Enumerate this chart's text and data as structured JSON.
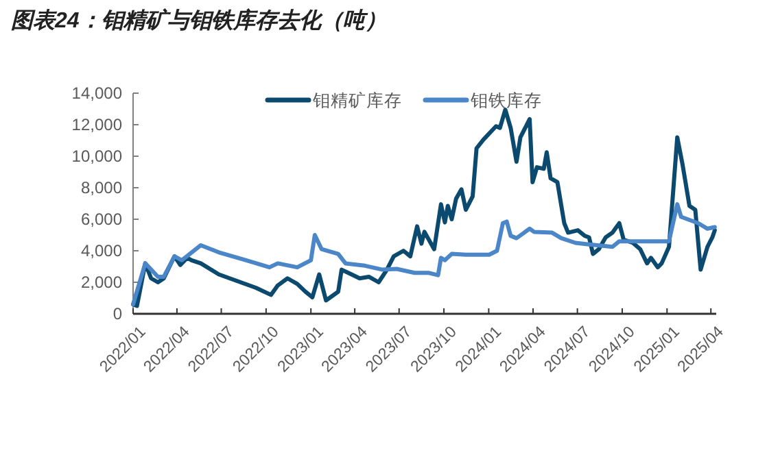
{
  "chart_data": {
    "type": "line",
    "title": "图表24：钼精矿与钼铁库存去化（吨）",
    "xlim": [
      "2022-01-01",
      "2025-04-12"
    ],
    "xticks": [
      {
        "value": "2022-01-01",
        "label": "2022/01"
      },
      {
        "value": "2022-04-01",
        "label": "2022/04"
      },
      {
        "value": "2022-07-01",
        "label": "2022/07"
      },
      {
        "value": "2022-10-01",
        "label": "2022/10"
      },
      {
        "value": "2023-01-01",
        "label": "2023/01"
      },
      {
        "value": "2023-04-01",
        "label": "2023/04"
      },
      {
        "value": "2023-07-01",
        "label": "2023/07"
      },
      {
        "value": "2023-10-01",
        "label": "2023/10"
      },
      {
        "value": "2024-01-01",
        "label": "2024/01"
      },
      {
        "value": "2024-04-01",
        "label": "2024/04"
      },
      {
        "value": "2024-07-01",
        "label": "2024/07"
      },
      {
        "value": "2024-10-01",
        "label": "2024/10"
      },
      {
        "value": "2025-01-01",
        "label": "2025/01"
      },
      {
        "value": "2025-04-01",
        "label": "2025/04"
      }
    ],
    "ylim": [
      0,
      14000
    ],
    "yticks": [
      0,
      {
        "value": 2000,
        "label": "2,000"
      },
      {
        "value": 4000,
        "label": "4,000"
      },
      {
        "value": 6000,
        "label": "6,000"
      },
      {
        "value": 8000,
        "label": "8,000"
      },
      {
        "value": 10000,
        "label": "10,000"
      },
      {
        "value": 12000,
        "label": "12,000"
      },
      {
        "value": 14000,
        "label": "14,000"
      }
    ],
    "grid": false,
    "legend": "top",
    "line_style": "solid",
    "marker": "none",
    "series": [
      {
        "name": "钼精矿库存",
        "color": "#0b4a6e",
        "x": [
          "2022-01-01",
          "2022-01-09",
          "2022-01-26",
          "2022-02-07",
          "2022-02-21",
          "2022-03-05",
          "2022-03-27",
          "2022-04-08",
          "2022-04-22",
          "2022-05-01",
          "2022-05-20",
          "2022-06-26",
          "2022-08-01",
          "2022-09-10",
          "2022-10-11",
          "2022-10-25",
          "2022-11-14",
          "2022-12-04",
          "2022-12-21",
          "2023-01-04",
          "2023-01-18",
          "2023-02-01",
          "2023-02-26",
          "2023-03-05",
          "2023-04-11",
          "2023-04-30",
          "2023-05-20",
          "2023-06-06",
          "2023-06-20",
          "2023-07-10",
          "2023-07-24",
          "2023-08-07",
          "2023-08-16",
          "2023-08-22",
          "2023-09-11",
          "2023-09-25",
          "2023-10-03",
          "2023-10-09",
          "2023-10-17",
          "2023-10-26",
          "2023-11-06",
          "2023-11-15",
          "2023-11-29",
          "2023-12-07",
          "2023-12-21",
          "2024-01-16",
          "2024-01-24",
          "2024-02-04",
          "2024-02-15",
          "2024-02-27",
          "2024-03-06",
          "2024-03-25",
          "2024-03-31",
          "2024-04-09",
          "2024-04-23",
          "2024-04-29",
          "2024-05-07",
          "2024-05-21",
          "2024-06-04",
          "2024-06-12",
          "2024-07-02",
          "2024-07-16",
          "2024-07-25",
          "2024-08-02",
          "2024-08-14",
          "2024-08-28",
          "2024-09-11",
          "2024-09-25",
          "2024-10-04",
          "2024-10-23",
          "2024-11-07",
          "2024-11-21",
          "2024-11-29",
          "2024-12-13",
          "2024-12-21",
          "2025-01-05",
          "2025-01-22",
          "2025-02-02",
          "2025-02-16",
          "2025-02-28",
          "2025-03-11",
          "2025-03-25",
          "2025-04-04",
          "2025-04-09"
        ],
        "values": [
          600,
          500,
          3200,
          2250,
          2000,
          2250,
          3650,
          3100,
          3550,
          3400,
          3200,
          2500,
          2100,
          1650,
          1200,
          1800,
          2250,
          1900,
          1400,
          1050,
          2500,
          850,
          1400,
          2800,
          2250,
          2350,
          2000,
          2800,
          3650,
          4000,
          3650,
          5550,
          4450,
          5200,
          4100,
          6950,
          5800,
          6850,
          6000,
          7300,
          7900,
          6600,
          7450,
          10500,
          11050,
          11900,
          11800,
          12950,
          11800,
          9650,
          11200,
          12350,
          8350,
          9300,
          9200,
          10250,
          8600,
          8350,
          5750,
          5150,
          5300,
          4950,
          4850,
          3800,
          4100,
          4850,
          5150,
          5750,
          4700,
          4500,
          4100,
          3200,
          3550,
          2950,
          3200,
          4250,
          11200,
          9450,
          6850,
          6600,
          2800,
          4250,
          4850,
          5300
        ]
      },
      {
        "name": "钼铁库存",
        "color": "#4a86c8",
        "x": [
          "2022-01-01",
          "2022-01-26",
          "2022-02-21",
          "2022-03-05",
          "2022-03-27",
          "2022-04-11",
          "2022-05-20",
          "2022-06-26",
          "2022-08-21",
          "2022-10-08",
          "2022-10-25",
          "2022-12-04",
          "2023-01-01",
          "2023-01-09",
          "2023-01-23",
          "2023-02-26",
          "2023-03-13",
          "2023-04-22",
          "2023-05-28",
          "2023-06-26",
          "2023-08-02",
          "2023-08-30",
          "2023-09-19",
          "2023-09-25",
          "2023-10-03",
          "2023-10-17",
          "2023-11-15",
          "2024-01-02",
          "2024-01-18",
          "2024-01-30",
          "2024-02-07",
          "2024-02-15",
          "2024-02-27",
          "2024-03-25",
          "2024-04-03",
          "2024-05-10",
          "2024-05-29",
          "2024-06-27",
          "2024-07-25",
          "2024-09-11",
          "2024-09-25",
          "2024-11-21",
          "2025-01-05",
          "2025-01-22",
          "2025-01-30",
          "2025-03-06",
          "2025-03-25",
          "2025-04-09"
        ],
        "values": [
          600,
          3200,
          2350,
          2350,
          3650,
          3400,
          4350,
          3900,
          3400,
          2950,
          3200,
          2950,
          3400,
          5000,
          4100,
          3800,
          3200,
          3050,
          2800,
          2850,
          2600,
          2600,
          2450,
          3550,
          3400,
          3800,
          3750,
          3750,
          4000,
          5750,
          5850,
          4950,
          4800,
          5400,
          5200,
          5150,
          4800,
          4500,
          4400,
          4250,
          4600,
          4600,
          4600,
          6950,
          6150,
          5750,
          5400,
          5500
        ]
      }
    ]
  }
}
